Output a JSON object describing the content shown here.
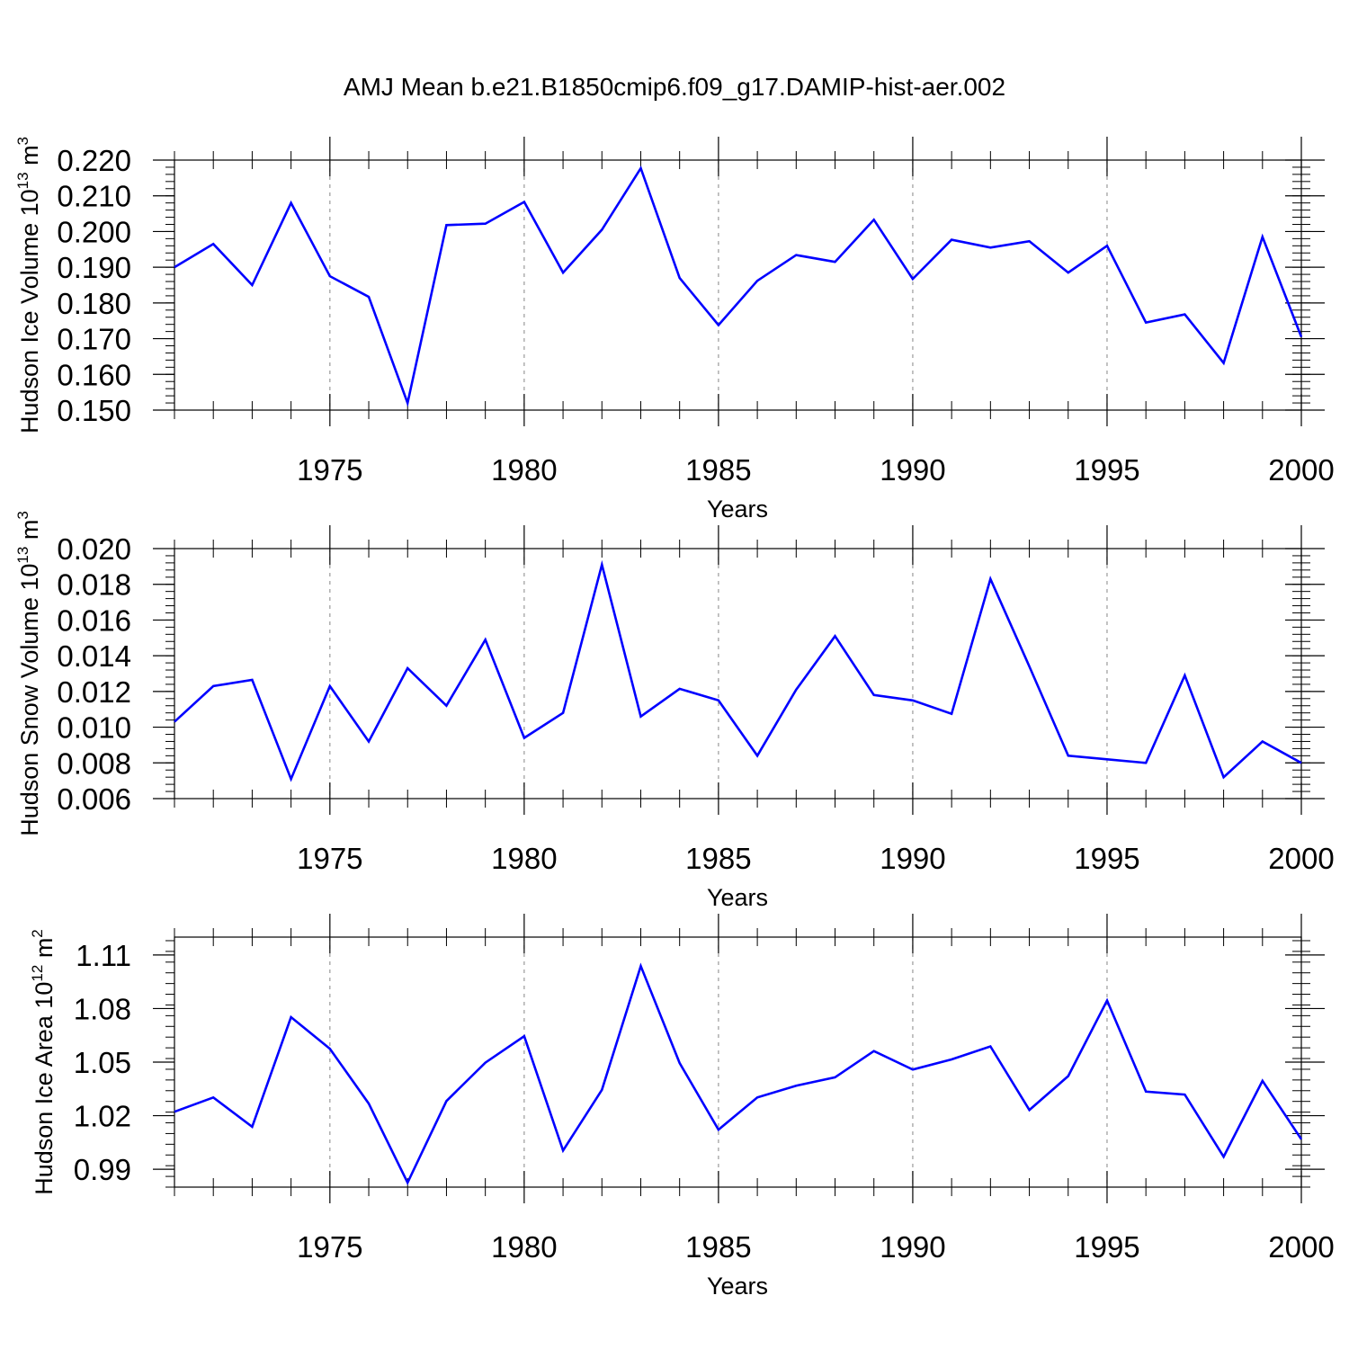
{
  "figure": {
    "title": "AMJ Mean b.e21.B1850cmip6.f09_g17.DAMIP-hist-aer.002"
  },
  "chart_data": [
    {
      "type": "line",
      "title": "AMJ Mean b.e21.B1850cmip6.f09_g17.DAMIP-hist-aer.002",
      "xlabel": "Years",
      "ylabel_main": "Hudson Ice Volume 10",
      "ylabel_sup": "13",
      "ylabel_unit": " m",
      "ylabel_unit_sup": "3",
      "xlim": [
        1971,
        2000
      ],
      "ylim": [
        0.15,
        0.22
      ],
      "xticks": [
        1975,
        1980,
        1985,
        1990,
        1995,
        2000
      ],
      "xtick_labels": [
        "1975",
        "1980",
        "1985",
        "1990",
        "1995",
        "2000"
      ],
      "yticks": [
        0.15,
        0.16,
        0.17,
        0.18,
        0.19,
        0.2,
        0.21,
        0.22
      ],
      "ytick_labels": [
        "0.150",
        "0.160",
        "0.170",
        "0.180",
        "0.190",
        "0.200",
        "0.210",
        "0.220"
      ],
      "yminor_step": 0.002,
      "grid": "vertical dashed at major x ticks",
      "line_color": "#0000ff",
      "series": [
        {
          "name": "Hudson Ice Volume",
          "x": [
            1971,
            1972,
            1973,
            1974,
            1975,
            1976,
            1977,
            1978,
            1979,
            1980,
            1981,
            1982,
            1983,
            1984,
            1985,
            1986,
            1987,
            1988,
            1989,
            1990,
            1991,
            1992,
            1993,
            1994,
            1995,
            1996,
            1997,
            1998,
            1999,
            2000
          ],
          "values": [
            0.19,
            0.1965,
            0.185,
            0.208,
            0.1875,
            0.1817,
            0.152,
            0.2018,
            0.2022,
            0.2083,
            0.1885,
            0.2005,
            0.2177,
            0.187,
            0.1738,
            0.1862,
            0.1934,
            0.1915,
            0.2033,
            0.1867,
            0.1977,
            0.1955,
            0.1973,
            0.1885,
            0.196,
            0.1745,
            0.1768,
            0.1632,
            0.1985,
            0.1705
          ]
        }
      ]
    },
    {
      "type": "line",
      "xlabel": "Years",
      "ylabel_main": "Hudson Snow Volume 10",
      "ylabel_sup": "13",
      "ylabel_unit": " m",
      "ylabel_unit_sup": "3",
      "xlim": [
        1971,
        2000
      ],
      "ylim": [
        0.006,
        0.02
      ],
      "xticks": [
        1975,
        1980,
        1985,
        1990,
        1995,
        2000
      ],
      "xtick_labels": [
        "1975",
        "1980",
        "1985",
        "1990",
        "1995",
        "2000"
      ],
      "yticks": [
        0.006,
        0.008,
        0.01,
        0.012,
        0.014,
        0.016,
        0.018,
        0.02
      ],
      "ytick_labels": [
        "0.006",
        "0.008",
        "0.010",
        "0.012",
        "0.014",
        "0.016",
        "0.018",
        "0.020"
      ],
      "yminor_step": 0.0004,
      "grid": "vertical dashed at major x ticks",
      "line_color": "#0000ff",
      "series": [
        {
          "name": "Hudson Snow Volume",
          "x": [
            1971,
            1972,
            1973,
            1974,
            1975,
            1976,
            1977,
            1978,
            1979,
            1980,
            1981,
            1982,
            1983,
            1984,
            1985,
            1986,
            1987,
            1988,
            1989,
            1990,
            1991,
            1992,
            1993,
            1994,
            1995,
            1996,
            1997,
            1998,
            1999,
            2000
          ],
          "values": [
            0.0103,
            0.0123,
            0.01265,
            0.0071,
            0.0123,
            0.0092,
            0.0133,
            0.0112,
            0.0149,
            0.0094,
            0.0108,
            0.0191,
            0.0106,
            0.01215,
            0.0115,
            0.0084,
            0.0121,
            0.0151,
            0.0118,
            0.0115,
            0.01075,
            0.0183,
            0.0134,
            0.0084,
            0.0082,
            0.008,
            0.0129,
            0.0072,
            0.0092,
            0.008
          ]
        }
      ]
    },
    {
      "type": "line",
      "xlabel": "Years",
      "ylabel_main": "Hudson Ice Area 10",
      "ylabel_sup": "12",
      "ylabel_unit": " m",
      "ylabel_unit_sup": "2",
      "xlim": [
        1971,
        2000
      ],
      "ylim": [
        0.98,
        1.12
      ],
      "xticks": [
        1975,
        1980,
        1985,
        1990,
        1995,
        2000
      ],
      "xtick_labels": [
        "1975",
        "1980",
        "1985",
        "1990",
        "1995",
        "2000"
      ],
      "yticks": [
        0.99,
        1.02,
        1.05,
        1.08,
        1.11
      ],
      "ytick_labels": [
        "0.99",
        "1.02",
        "1.05",
        "1.08",
        "1.11"
      ],
      "yminor_step": 0.006,
      "grid": "vertical dashed at major x ticks",
      "line_color": "#0000ff",
      "series": [
        {
          "name": "Hudson Ice Area",
          "x": [
            1971,
            1972,
            1973,
            1974,
            1975,
            1976,
            1977,
            1978,
            1979,
            1980,
            1981,
            1982,
            1983,
            1984,
            1985,
            1986,
            1987,
            1988,
            1989,
            1990,
            1991,
            1992,
            1993,
            1994,
            1995,
            1996,
            1997,
            1998,
            1999,
            2000
          ],
          "values": [
            1.0222,
            1.0302,
            1.0138,
            1.0752,
            1.0575,
            1.0268,
            0.9825,
            1.0282,
            1.0497,
            1.0645,
            1.0005,
            1.0345,
            1.1038,
            1.0495,
            1.0122,
            1.0302,
            1.0368,
            1.0415,
            1.0562,
            1.0458,
            1.0515,
            1.0588,
            1.0232,
            1.0422,
            1.0845,
            1.0335,
            1.0318,
            0.997,
            1.0395,
            1.0068
          ]
        }
      ]
    }
  ]
}
